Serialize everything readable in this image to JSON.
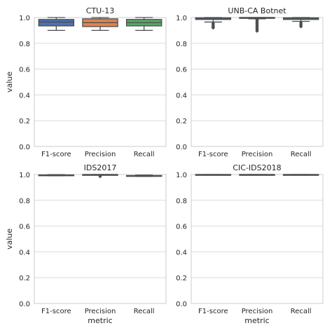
{
  "chart_data": [
    {
      "type": "box",
      "title": "CTU-13",
      "xlabel": "",
      "ylabel": "value",
      "ylim": [
        0,
        1.0
      ],
      "yticks": [
        "0.0",
        "0.2",
        "0.4",
        "0.6",
        "0.8",
        "1.0"
      ],
      "categories": [
        "F1-score",
        "Precision",
        "Recall"
      ],
      "colors": [
        "#4c72b0",
        "#dd8452",
        "#55a868"
      ],
      "boxes": [
        {
          "whislo": 0.9,
          "q1": 0.935,
          "med": 0.965,
          "q3": 0.985,
          "whishi": 1.0,
          "fliers": []
        },
        {
          "whislo": 0.9,
          "q1": 0.93,
          "med": 0.96,
          "q3": 0.99,
          "whishi": 1.0,
          "fliers": []
        },
        {
          "whislo": 0.9,
          "q1": 0.935,
          "med": 0.96,
          "q3": 0.985,
          "whishi": 1.0,
          "fliers": []
        }
      ],
      "grid": true
    },
    {
      "type": "box",
      "title": "UNB-CA Botnet",
      "xlabel": "",
      "ylabel": "",
      "ylim": [
        0,
        1.0
      ],
      "yticks": [
        "0.0",
        "0.2",
        "0.4",
        "0.6",
        "0.8",
        "1.0"
      ],
      "categories": [
        "F1-score",
        "Precision",
        "Recall"
      ],
      "colors": [
        "#4c72b0",
        "#dd8452",
        "#55a868"
      ],
      "boxes": [
        {
          "whislo": 0.965,
          "q1": 0.985,
          "med": 0.99,
          "q3": 0.998,
          "whishi": 1.0,
          "fliers": [
            0.955,
            0.945,
            0.935,
            0.925,
            0.92
          ]
        },
        {
          "whislo": 0.99,
          "q1": 0.997,
          "med": 1.0,
          "q3": 1.0,
          "whishi": 1.0,
          "fliers": [
            0.985,
            0.975,
            0.965,
            0.955,
            0.945,
            0.935,
            0.925,
            0.915,
            0.905,
            0.895
          ]
        },
        {
          "whislo": 0.97,
          "q1": 0.985,
          "med": 0.99,
          "q3": 0.998,
          "whishi": 1.0,
          "fliers": [
            0.96,
            0.95,
            0.94,
            0.93
          ]
        }
      ],
      "grid": true
    },
    {
      "type": "box",
      "title": "IDS2017",
      "xlabel": "metric",
      "ylabel": "value",
      "ylim": [
        0,
        1.0
      ],
      "yticks": [
        "0.0",
        "0.2",
        "0.4",
        "0.6",
        "0.8",
        "1.0"
      ],
      "categories": [
        "F1-score",
        "Precision",
        "Recall"
      ],
      "colors": [
        "#4c72b0",
        "#dd8452",
        "#55a868"
      ],
      "boxes": [
        {
          "whislo": 0.99,
          "q1": 0.993,
          "med": 0.995,
          "q3": 0.997,
          "whishi": 0.999,
          "fliers": []
        },
        {
          "whislo": 0.998,
          "q1": 0.999,
          "med": 1.0,
          "q3": 1.0,
          "whishi": 1.0,
          "fliers": [
            0.985
          ]
        },
        {
          "whislo": 0.985,
          "q1": 0.988,
          "med": 0.99,
          "q3": 0.992,
          "whishi": 0.995,
          "fliers": []
        }
      ],
      "grid": true
    },
    {
      "type": "box",
      "title": "CIC-IDS2018",
      "xlabel": "metric",
      "ylabel": "",
      "ylim": [
        0,
        1.0
      ],
      "yticks": [
        "0.0",
        "0.2",
        "0.4",
        "0.6",
        "0.8",
        "1.0"
      ],
      "categories": [
        "F1-score",
        "Precision",
        "Recall"
      ],
      "colors": [
        "#4c72b0",
        "#dd8452",
        "#55a868"
      ],
      "boxes": [
        {
          "whislo": 0.998,
          "q1": 0.999,
          "med": 1.0,
          "q3": 1.0,
          "whishi": 1.0,
          "fliers": []
        },
        {
          "whislo": 0.998,
          "q1": 0.999,
          "med": 1.0,
          "q3": 1.0,
          "whishi": 1.0,
          "fliers": []
        },
        {
          "whislo": 0.998,
          "q1": 0.999,
          "med": 1.0,
          "q3": 1.0,
          "whishi": 1.0,
          "fliers": []
        }
      ],
      "grid": true
    }
  ]
}
